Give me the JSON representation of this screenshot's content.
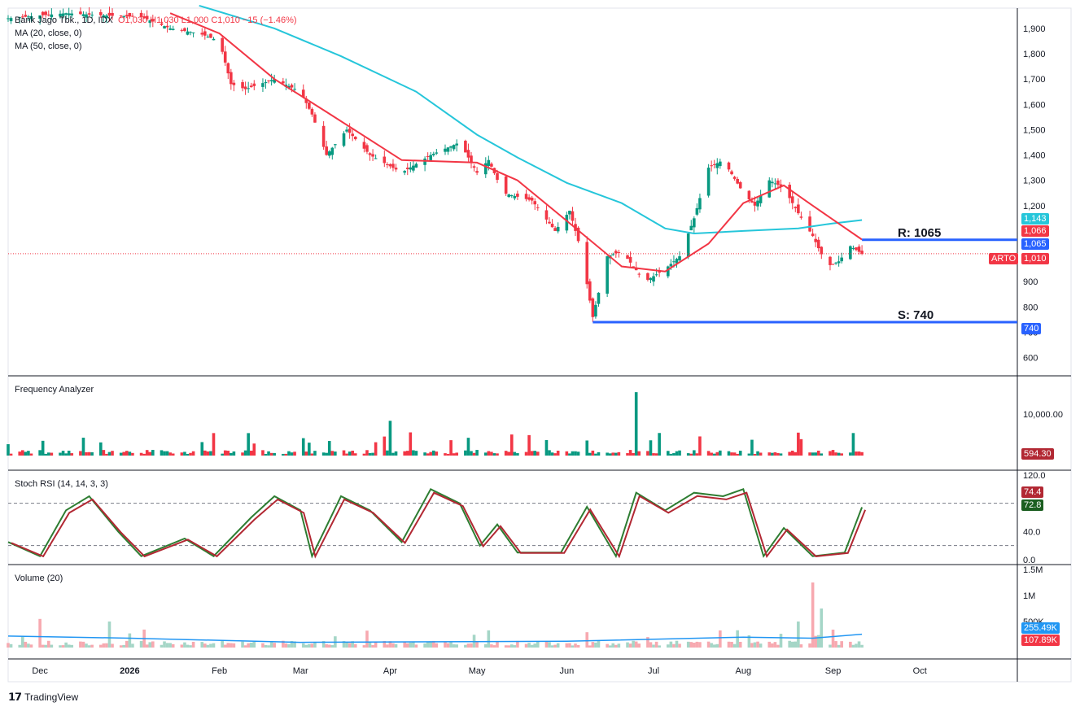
{
  "header": {
    "symbol_line": "Bank Jago Tbk., 1D, IDX",
    "ohlc": "O1,030  H1,030  L1,000  C1,010  −15 (−1.46%)",
    "ma20": "MA (20, close, 0)",
    "ma50": "MA (50, close, 0)"
  },
  "panes": {
    "freq_title": "Frequency Analyzer",
    "stoch_title": "Stoch RSI (14, 14, 3, 3)",
    "volume_title": "Volume (20)"
  },
  "tags": {
    "ma50_value": "1,143",
    "ma20_value": "1,066",
    "resistance_value": "1,065",
    "ticker": "ARTO",
    "last_price": "1,010",
    "support_value": "740",
    "freq_value": "594.30",
    "stoch_k": "74.4",
    "stoch_d": "72.8",
    "vol_ma": "255.49K",
    "vol_last": "107.89K"
  },
  "levels": {
    "resistance_label": "R: 1065",
    "support_label": "S: 740",
    "resistance": 1065,
    "support": 740
  },
  "footer": {
    "brand": "TradingView"
  },
  "colors": {
    "up": "#089981",
    "down": "#f23645",
    "ma20": "#f23645",
    "ma50": "#26c6da",
    "level": "#2962ff",
    "grid": "#e0e3eb"
  },
  "chart_data": {
    "type": "candlestick",
    "title": "Bank Jago Tbk., 1D, IDX",
    "price_axis": {
      "ticks": [
        1900,
        1800,
        1700,
        1600,
        1500,
        1400,
        1300,
        1200,
        900,
        800,
        700,
        600
      ],
      "ylim": [
        560,
        1980
      ]
    },
    "x_ticks": [
      "Dec",
      "2026",
      "Feb",
      "Mar",
      "Apr",
      "May",
      "Jun",
      "Jul",
      "Aug",
      "Sep",
      "Oct"
    ],
    "price_path": [
      [
        "2025-11-20",
        1940
      ],
      [
        "2025-12-10",
        1960
      ],
      [
        "2025-12-25",
        1950
      ],
      [
        "2026-01-05",
        1945
      ],
      [
        "2026-01-15",
        1900
      ],
      [
        "2026-01-25",
        1880
      ],
      [
        "2026-02-01",
        1850
      ],
      [
        "2026-02-05",
        1680
      ],
      [
        "2026-02-10",
        1660
      ],
      [
        "2026-02-20",
        1700
      ],
      [
        "2026-03-01",
        1650
      ],
      [
        "2026-03-05",
        1560
      ],
      [
        "2026-03-10",
        1400
      ],
      [
        "2026-03-17",
        1500
      ],
      [
        "2026-03-25",
        1400
      ],
      [
        "2026-04-05",
        1330
      ],
      [
        "2026-04-15",
        1400
      ],
      [
        "2026-04-25",
        1450
      ],
      [
        "2026-05-01",
        1330
      ],
      [
        "2026-05-05",
        1380
      ],
      [
        "2026-05-10",
        1250
      ],
      [
        "2026-05-20",
        1220
      ],
      [
        "2026-05-28",
        1100
      ],
      [
        "2026-06-02",
        1180
      ],
      [
        "2026-06-06",
        1020
      ],
      [
        "2026-06-10",
        760
      ],
      [
        "2026-06-15",
        1000
      ],
      [
        "2026-06-20",
        1020
      ],
      [
        "2026-06-28",
        900
      ],
      [
        "2026-07-05",
        950
      ],
      [
        "2026-07-10",
        1000
      ],
      [
        "2026-07-15",
        1150
      ],
      [
        "2026-07-20",
        1350
      ],
      [
        "2026-07-25",
        1380
      ],
      [
        "2026-08-01",
        1250
      ],
      [
        "2026-08-05",
        1200
      ],
      [
        "2026-08-10",
        1300
      ],
      [
        "2026-08-15",
        1270
      ],
      [
        "2026-08-20",
        1170
      ],
      [
        "2026-08-25",
        1080
      ],
      [
        "2026-08-30",
        960
      ],
      [
        "2026-09-03",
        980
      ],
      [
        "2026-09-07",
        1040
      ],
      [
        "2026-09-11",
        1010
      ]
    ],
    "ma20_path": [
      [
        "2026-01-15",
        1960
      ],
      [
        "2026-02-01",
        1880
      ],
      [
        "2026-02-20",
        1700
      ],
      [
        "2026-03-10",
        1570
      ],
      [
        "2026-04-05",
        1380
      ],
      [
        "2026-05-01",
        1370
      ],
      [
        "2026-05-15",
        1300
      ],
      [
        "2026-06-01",
        1140
      ],
      [
        "2026-06-20",
        960
      ],
      [
        "2026-07-05",
        940
      ],
      [
        "2026-07-20",
        1050
      ],
      [
        "2026-08-01",
        1210
      ],
      [
        "2026-08-15",
        1280
      ],
      [
        "2026-08-25",
        1200
      ],
      [
        "2026-09-11",
        1066
      ]
    ],
    "ma50_path": [
      [
        "2026-01-25",
        1990
      ],
      [
        "2026-02-20",
        1900
      ],
      [
        "2026-03-15",
        1790
      ],
      [
        "2026-04-10",
        1650
      ],
      [
        "2026-05-01",
        1480
      ],
      [
        "2026-05-15",
        1390
      ],
      [
        "2026-06-01",
        1290
      ],
      [
        "2026-06-20",
        1210
      ],
      [
        "2026-07-05",
        1110
      ],
      [
        "2026-07-15",
        1090
      ],
      [
        "2026-08-01",
        1100
      ],
      [
        "2026-08-20",
        1110
      ],
      [
        "2026-09-01",
        1130
      ],
      [
        "2026-09-11",
        1143
      ]
    ],
    "freq_axis": {
      "ticks": [
        "10,000.00"
      ]
    },
    "freq_spikes": [
      [
        "2026-04-01",
        0.45
      ],
      [
        "2026-06-25",
        0.82
      ],
      [
        "2026-06-20",
        0.2
      ],
      [
        "2026-04-08",
        0.3
      ],
      [
        "2026-05-25",
        0.2
      ]
    ],
    "stoch_axis": {
      "ticks": [
        "120.0",
        "40.0",
        "0.0"
      ],
      "bands": [
        80,
        20
      ]
    },
    "stoch_k_path": [
      [
        "2025-11-20",
        25
      ],
      [
        "2025-12-01",
        5
      ],
      [
        "2025-12-10",
        70
      ],
      [
        "2025-12-18",
        90
      ],
      [
        "2025-12-28",
        40
      ],
      [
        "2026-01-05",
        5
      ],
      [
        "2026-01-20",
        30
      ],
      [
        "2026-01-30",
        5
      ],
      [
        "2026-02-12",
        60
      ],
      [
        "2026-02-20",
        90
      ],
      [
        "2026-03-01",
        70
      ],
      [
        "2026-03-05",
        5
      ],
      [
        "2026-03-15",
        90
      ],
      [
        "2026-03-25",
        70
      ],
      [
        "2026-04-05",
        25
      ],
      [
        "2026-04-15",
        100
      ],
      [
        "2026-04-25",
        80
      ],
      [
        "2026-05-02",
        20
      ],
      [
        "2026-05-08",
        50
      ],
      [
        "2026-05-15",
        10
      ],
      [
        "2026-05-30",
        10
      ],
      [
        "2026-06-08",
        75
      ],
      [
        "2026-06-18",
        5
      ],
      [
        "2026-06-25",
        95
      ],
      [
        "2026-07-05",
        70
      ],
      [
        "2026-07-15",
        95
      ],
      [
        "2026-07-25",
        90
      ],
      [
        "2026-08-01",
        100
      ],
      [
        "2026-08-08",
        5
      ],
      [
        "2026-08-15",
        45
      ],
      [
        "2026-08-25",
        5
      ],
      [
        "2026-09-05",
        10
      ],
      [
        "2026-09-11",
        74.4
      ]
    ],
    "volume_axis": {
      "ticks": [
        "1.5M",
        "1M",
        "500K"
      ]
    },
    "volume_spikes": [
      [
        "2026-08-25",
        1250000
      ],
      [
        "2026-08-28",
        750000
      ],
      [
        "2026-08-20",
        500000
      ],
      [
        "2025-12-01",
        550000
      ],
      [
        "2025-12-25",
        500000
      ]
    ]
  }
}
